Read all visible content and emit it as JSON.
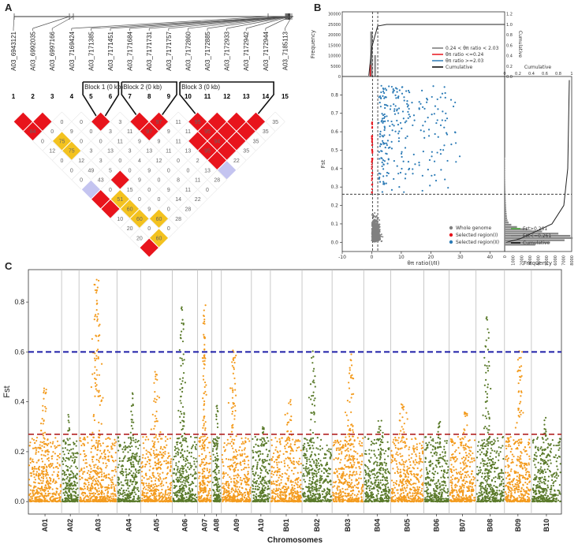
{
  "panel_labels": {
    "a": "A",
    "b": "B",
    "c": "C"
  },
  "colors": {
    "red": "#e8141c",
    "yellow": "#f3c21f",
    "lavender": "#c4c4f0",
    "orange": "#f39b1e",
    "green": "#5a7a2a",
    "blue_dash": "#1f1fa8",
    "red_dash": "#b22222",
    "scatter_blue": "#2c7bb6",
    "scatter_gray": "#808080"
  },
  "ld": {
    "snps": [
      "A03_6943121",
      "A03_6992035",
      "A03_6997166",
      "A03_7169424",
      "A03_7171385",
      "A03_7171451",
      "A03_7171684",
      "A03_7171731",
      "A03_7171757",
      "A03_7172860",
      "A03_7172885",
      "A03_7172933",
      "A03_7172942",
      "A03_7172944",
      "A03_7185113"
    ],
    "indices": [
      "1",
      "2",
      "3",
      "4",
      "5",
      "6",
      "7",
      "8",
      "9",
      "10",
      "11",
      "12",
      "13",
      "14",
      "15"
    ],
    "blocks": [
      {
        "label": "Block 1 (0 kb)",
        "from": 5,
        "to": 6
      },
      {
        "label": "Block 2 (0 kb)",
        "from": 7,
        "to": 9
      },
      {
        "label": "Block 3 (0 kb)",
        "from": 10,
        "to": 14
      }
    ],
    "cells": [
      {
        "i": 1,
        "j": 2,
        "v": "",
        "c": "red"
      },
      {
        "i": 2,
        "j": 3,
        "v": "",
        "c": "red"
      },
      {
        "i": 3,
        "j": 4,
        "v": "0",
        "c": "white"
      },
      {
        "i": 4,
        "j": 5,
        "v": "0",
        "c": "white"
      },
      {
        "i": 5,
        "j": 6,
        "v": "",
        "c": "red"
      },
      {
        "i": 6,
        "j": 7,
        "v": "3",
        "c": "white"
      },
      {
        "i": 7,
        "j": 8,
        "v": "",
        "c": "red"
      },
      {
        "i": 8,
        "j": 9,
        "v": "97",
        "c": "red"
      },
      {
        "i": 9,
        "j": 10,
        "v": "11",
        "c": "white"
      },
      {
        "i": 10,
        "j": 11,
        "v": "95",
        "c": "red"
      },
      {
        "i": 11,
        "j": 12,
        "v": "",
        "c": "red"
      },
      {
        "i": 12,
        "j": 13,
        "v": "",
        "c": "red"
      },
      {
        "i": 13,
        "j": 14,
        "v": "",
        "c": "red"
      },
      {
        "i": 14,
        "j": 15,
        "v": "35",
        "c": "white"
      },
      {
        "i": 1,
        "j": 3,
        "v": "84",
        "c": "red"
      },
      {
        "i": 2,
        "j": 4,
        "v": "0",
        "c": "white"
      },
      {
        "i": 3,
        "j": 5,
        "v": "9",
        "c": "white"
      },
      {
        "i": 4,
        "j": 6,
        "v": "0",
        "c": "white"
      },
      {
        "i": 5,
        "j": 7,
        "v": "3",
        "c": "white"
      },
      {
        "i": 6,
        "j": 8,
        "v": "11",
        "c": "white"
      },
      {
        "i": 7,
        "j": 9,
        "v": "97",
        "c": "red"
      },
      {
        "i": 8,
        "j": 10,
        "v": "9",
        "c": "white"
      },
      {
        "i": 9,
        "j": 11,
        "v": "11",
        "c": "white"
      },
      {
        "i": 10,
        "j": 12,
        "v": "95",
        "c": "red"
      },
      {
        "i": 11,
        "j": 13,
        "v": "",
        "c": "red"
      },
      {
        "i": 12,
        "j": 14,
        "v": "",
        "c": "red"
      },
      {
        "i": 13,
        "j": 15,
        "v": "35",
        "c": "white"
      },
      {
        "i": 1,
        "j": 4,
        "v": "0",
        "c": "white"
      },
      {
        "i": 2,
        "j": 5,
        "v": "75",
        "c": "yellow"
      },
      {
        "i": 3,
        "j": 6,
        "v": "0",
        "c": "white"
      },
      {
        "i": 4,
        "j": 7,
        "v": "0",
        "c": "white"
      },
      {
        "i": 5,
        "j": 8,
        "v": "11",
        "c": "white"
      },
      {
        "i": 6,
        "j": 9,
        "v": "9",
        "c": "white"
      },
      {
        "i": 7,
        "j": 10,
        "v": "9",
        "c": "white"
      },
      {
        "i": 8,
        "j": 11,
        "v": "11",
        "c": "white"
      },
      {
        "i": 9,
        "j": 12,
        "v": "",
        "c": "red"
      },
      {
        "i": 10,
        "j": 13,
        "v": "94",
        "c": "red"
      },
      {
        "i": 11,
        "j": 14,
        "v": "",
        "c": "red"
      },
      {
        "i": 12,
        "j": 15,
        "v": "35",
        "c": "white"
      },
      {
        "i": 1,
        "j": 5,
        "v": "12",
        "c": "white"
      },
      {
        "i": 2,
        "j": 6,
        "v": "75",
        "c": "yellow"
      },
      {
        "i": 3,
        "j": 7,
        "v": "3",
        "c": "white"
      },
      {
        "i": 4,
        "j": 8,
        "v": "13",
        "c": "white"
      },
      {
        "i": 5,
        "j": 9,
        "v": "3",
        "c": "white"
      },
      {
        "i": 6,
        "j": 10,
        "v": "13",
        "c": "white"
      },
      {
        "i": 7,
        "j": 11,
        "v": "11",
        "c": "white"
      },
      {
        "i": 8,
        "j": 12,
        "v": "13",
        "c": "white"
      },
      {
        "i": 9,
        "j": 13,
        "v": "95",
        "c": "red"
      },
      {
        "i": 10,
        "j": 14,
        "v": "",
        "c": "red"
      },
      {
        "i": 11,
        "j": 15,
        "v": "35",
        "c": "white"
      },
      {
        "i": 1,
        "j": 6,
        "v": "0",
        "c": "white"
      },
      {
        "i": 2,
        "j": 7,
        "v": "12",
        "c": "white"
      },
      {
        "i": 3,
        "j": 8,
        "v": "3",
        "c": "white"
      },
      {
        "i": 4,
        "j": 9,
        "v": "0",
        "c": "white"
      },
      {
        "i": 5,
        "j": 10,
        "v": "4",
        "c": "white"
      },
      {
        "i": 6,
        "j": 11,
        "v": "12",
        "c": "white"
      },
      {
        "i": 7,
        "j": 12,
        "v": "0",
        "c": "white"
      },
      {
        "i": 8,
        "j": 13,
        "v": "2",
        "c": "white"
      },
      {
        "i": 9,
        "j": 14,
        "v": "",
        "c": "red"
      },
      {
        "i": 10,
        "j": 15,
        "v": "22",
        "c": "white"
      },
      {
        "i": 1,
        "j": 7,
        "v": "0",
        "c": "white"
      },
      {
        "i": 2,
        "j": 8,
        "v": "49",
        "c": "white"
      },
      {
        "i": 3,
        "j": 9,
        "v": "5",
        "c": "white"
      },
      {
        "i": 4,
        "j": 10,
        "v": "0",
        "c": "white"
      },
      {
        "i": 5,
        "j": 11,
        "v": "9",
        "c": "white"
      },
      {
        "i": 6,
        "j": 12,
        "v": "0",
        "c": "white"
      },
      {
        "i": 7,
        "j": 13,
        "v": "0",
        "c": "white"
      },
      {
        "i": 8,
        "j": 14,
        "v": "13",
        "c": "white"
      },
      {
        "i": 9,
        "j": 15,
        "v": "",
        "c": "lavender"
      },
      {
        "i": 1,
        "j": 8,
        "v": "0",
        "c": "white"
      },
      {
        "i": 2,
        "j": 9,
        "v": "43",
        "c": "white"
      },
      {
        "i": 3,
        "j": 10,
        "v": "",
        "c": "red"
      },
      {
        "i": 4,
        "j": 11,
        "v": "9",
        "c": "white"
      },
      {
        "i": 5,
        "j": 12,
        "v": "0",
        "c": "white"
      },
      {
        "i": 6,
        "j": 13,
        "v": "8",
        "c": "white"
      },
      {
        "i": 7,
        "j": 14,
        "v": "11",
        "c": "white"
      },
      {
        "i": 8,
        "j": 15,
        "v": "28",
        "c": "white"
      },
      {
        "i": 1,
        "j": 9,
        "v": "",
        "c": "lavender"
      },
      {
        "i": 2,
        "j": 10,
        "v": "0",
        "c": "white"
      },
      {
        "i": 3,
        "j": 11,
        "v": "15",
        "c": "white"
      },
      {
        "i": 4,
        "j": 12,
        "v": "0",
        "c": "white"
      },
      {
        "i": 5,
        "j": 13,
        "v": "9",
        "c": "white"
      },
      {
        "i": 6,
        "j": 14,
        "v": "11",
        "c": "white"
      },
      {
        "i": 7,
        "j": 15,
        "v": "0",
        "c": "white"
      },
      {
        "i": 1,
        "j": 10,
        "v": "",
        "c": "red"
      },
      {
        "i": 2,
        "j": 11,
        "v": "51",
        "c": "yellow"
      },
      {
        "i": 3,
        "j": 12,
        "v": "0",
        "c": "white"
      },
      {
        "i": 4,
        "j": 13,
        "v": "0",
        "c": "white"
      },
      {
        "i": 5,
        "j": 14,
        "v": "14",
        "c": "white"
      },
      {
        "i": 6,
        "j": 15,
        "v": "22",
        "c": "white"
      },
      {
        "i": 1,
        "j": 11,
        "v": "",
        "c": "red"
      },
      {
        "i": 2,
        "j": 12,
        "v": "60",
        "c": "yellow"
      },
      {
        "i": 3,
        "j": 13,
        "v": "9",
        "c": "white"
      },
      {
        "i": 4,
        "j": 14,
        "v": "0",
        "c": "white"
      },
      {
        "i": 5,
        "j": 15,
        "v": "28",
        "c": "white"
      },
      {
        "i": 1,
        "j": 12,
        "v": "10",
        "c": "white"
      },
      {
        "i": 2,
        "j": 13,
        "v": "60",
        "c": "yellow"
      },
      {
        "i": 3,
        "j": 14,
        "v": "60",
        "c": "yellow"
      },
      {
        "i": 4,
        "j": 15,
        "v": "28",
        "c": "white"
      },
      {
        "i": 1,
        "j": 13,
        "v": "20",
        "c": "white"
      },
      {
        "i": 2,
        "j": 14,
        "v": "0",
        "c": "white"
      },
      {
        "i": 3,
        "j": 15,
        "v": "0",
        "c": "white"
      },
      {
        "i": 1,
        "j": 14,
        "v": "20",
        "c": "white"
      },
      {
        "i": 2,
        "j": 15,
        "v": "60",
        "c": "yellow"
      },
      {
        "i": 1,
        "j": 15,
        "v": "",
        "c": "red"
      }
    ]
  },
  "chart_data": [
    {
      "type": "scatter",
      "panel": "B",
      "xlabel": "θπ ratio(I/II)",
      "ylabel": "Fst",
      "xlim": [
        -10,
        45
      ],
      "ylim": [
        -0.05,
        0.9
      ],
      "xticks": [
        "-10",
        "0",
        "10",
        "20",
        "30",
        "40"
      ],
      "yticks": [
        "0.0",
        "0.1",
        "0.2",
        "0.3",
        "0.4",
        "0.5",
        "0.6",
        "0.7",
        "0.8"
      ],
      "thresholds": {
        "fst": 0.261,
        "ratio_low": 0.24,
        "ratio_high": 2.03
      },
      "top_hist": {
        "ylabel": "Frequency",
        "yticks": [
          "0",
          "5000",
          "10000",
          "15000",
          "20000",
          "25000",
          "30000"
        ],
        "cum_label": "Cumulative",
        "cum_ticks": [
          "0.0",
          "0.2",
          "0.4",
          "0.6",
          "0.8",
          "1.0",
          "1.2"
        ]
      },
      "right_hist": {
        "xlabel": "Frequency",
        "xticks": [
          "0",
          "1000",
          "2000",
          "3000",
          "4000",
          "5000",
          "6000",
          "7000",
          "8000"
        ],
        "cum_label": "Cumulative",
        "cum_ticks": [
          "0",
          "0.2",
          "0.4",
          "0.6",
          "0.8",
          "1"
        ]
      },
      "legend_top": [
        "0.24 < θπ ratio < 2.03",
        "θπ ratio <=0.24",
        "θπ ratio >=2.03",
        "Cumulative"
      ],
      "legend_bottom": [
        "Whole genome",
        "Selected region(I)",
        "Selected region(II)"
      ],
      "legend_right": [
        "Fst>0.261",
        "Fst<=0.261",
        "Cumulative"
      ]
    },
    {
      "type": "scatter",
      "panel": "C",
      "title": "",
      "xlabel": "Chromosomes",
      "ylabel": "Fst",
      "ylim": [
        -0.05,
        0.93
      ],
      "yticks": [
        "0.0",
        "0.2",
        "0.4",
        "0.6",
        "0.8"
      ],
      "thresholds": {
        "blue": 0.6,
        "red": 0.27
      },
      "categories": [
        "A01",
        "A02",
        "A03",
        "A04",
        "A05",
        "A06",
        "A07",
        "A08",
        "A09",
        "A10",
        "B01",
        "B02",
        "B03",
        "B04",
        "B05",
        "B06",
        "B07",
        "B08",
        "B09",
        "B10"
      ],
      "chrom_max_fst": [
        0.47,
        0.35,
        0.9,
        0.44,
        0.55,
        0.78,
        0.8,
        0.39,
        0.61,
        0.3,
        0.42,
        0.61,
        0.6,
        0.33,
        0.43,
        0.32,
        0.37,
        0.74,
        0.61,
        0.36
      ]
    }
  ]
}
